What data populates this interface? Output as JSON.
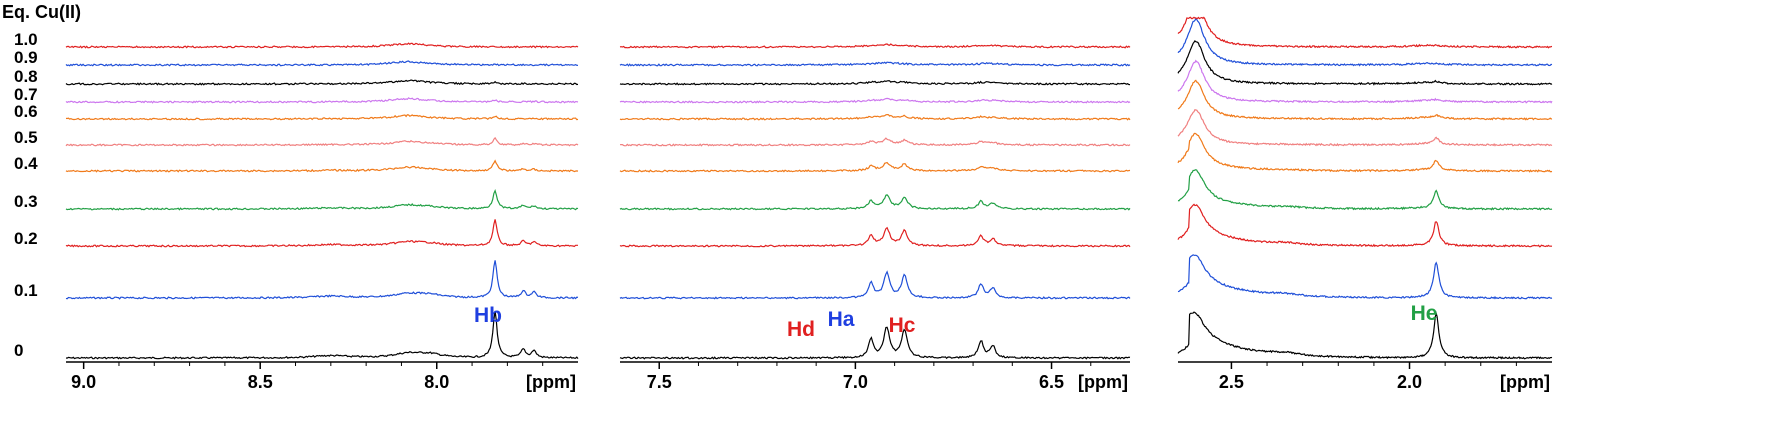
{
  "chart_data": {
    "type": "line",
    "title": "Eq. Cu(II)",
    "xunit": "[ppm]",
    "panels": [
      {
        "name": "panel-aromatic-left",
        "xlim": [
          9.05,
          7.6
        ],
        "ticks": [
          "9.0",
          "8.5",
          "8.0"
        ],
        "tick_values": [
          9.0,
          8.5,
          8.0
        ]
      },
      {
        "name": "panel-aromatic-right",
        "xlim": [
          7.6,
          6.3
        ],
        "ticks": [
          "7.5",
          "7.0",
          "6.5"
        ],
        "tick_values": [
          7.5,
          7.0,
          6.5
        ]
      },
      {
        "name": "panel-aliphatic",
        "xlim": [
          2.65,
          1.6
        ],
        "ticks": [
          "2.5",
          "2.0"
        ],
        "tick_values": [
          2.5,
          2.0
        ]
      }
    ],
    "series": [
      {
        "label": "0",
        "color": "#000000",
        "peak_height": 1.0
      },
      {
        "label": "0.1",
        "color": "#1f4fd8",
        "peak_height": 0.8
      },
      {
        "label": "0.2",
        "color": "#e02020",
        "peak_height": 0.55
      },
      {
        "label": "0.3",
        "color": "#22a045",
        "peak_height": 0.4
      },
      {
        "label": "0.4",
        "color": "#f07a1a",
        "peak_height": 0.22
      },
      {
        "label": "0.5",
        "color": "#f08080",
        "peak_height": 0.14
      },
      {
        "label": "0.6",
        "color": "#f07a1a",
        "peak_height": 0.06
      },
      {
        "label": "0.7",
        "color": "#cc77ee",
        "peak_height": 0.03
      },
      {
        "label": "0.8",
        "color": "#000000",
        "peak_height": 0.03
      },
      {
        "label": "0.9",
        "color": "#1f4fd8",
        "peak_height": 0.0
      },
      {
        "label": "1.0",
        "color": "#e02020",
        "peak_height": 0.01
      }
    ],
    "peaks": [
      {
        "name": "Hb",
        "ppm": 7.83,
        "color": "#1f3fe0"
      },
      {
        "name": "Hd",
        "ppm": 6.95,
        "color": "#e02020"
      },
      {
        "name": "Ha",
        "ppm": 6.9,
        "color": "#1f3fe0"
      },
      {
        "name": "Hc",
        "ppm": 6.67,
        "color": "#e02020"
      },
      {
        "name": "He",
        "ppm": 1.92,
        "color": "#22a045"
      }
    ]
  }
}
